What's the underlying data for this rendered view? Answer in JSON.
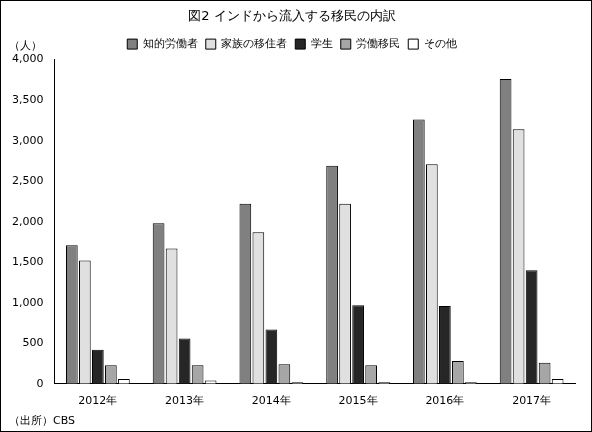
{
  "chart_data": {
    "type": "bar",
    "title": "図2 インドから流入する移民の内訳",
    "y_label": "（人）",
    "annotation": "（出所）CBS",
    "categories": [
      "2012年",
      "2013年",
      "2014年",
      "2015年",
      "2016年",
      "2017年"
    ],
    "series": [
      {
        "name": "知的労働者",
        "color": "#808080",
        "values": [
          1710,
          1980,
          2220,
          2690,
          3260,
          3760
        ]
      },
      {
        "name": "家族の移住者",
        "color": "#e0e0e0",
        "values": [
          1520,
          1670,
          1870,
          2220,
          2710,
          3140
        ]
      },
      {
        "name": "学生",
        "color": "#262626",
        "values": [
          420,
          560,
          670,
          970,
          960,
          1400
        ]
      },
      {
        "name": "労働移民",
        "color": "#a6a6a6",
        "values": [
          230,
          230,
          240,
          230,
          280,
          260
        ]
      },
      {
        "name": "その他",
        "color": "#ffffff",
        "values": [
          60,
          40,
          20,
          20,
          20,
          60
        ]
      }
    ],
    "ylim": [
      0,
      4000
    ],
    "yticks": [
      0,
      500,
      {
        "value": 1000,
        "label": "1,000"
      },
      {
        "value": 1500,
        "label": "1,500"
      },
      {
        "value": 2000,
        "label": "2,000"
      },
      {
        "value": 2500,
        "label": "2,500"
      },
      {
        "value": 3000,
        "label": "3,000"
      },
      {
        "value": 3500,
        "label": "3,500"
      },
      {
        "value": 4000,
        "label": "4,000"
      }
    ],
    "grid": false,
    "legend": "top"
  }
}
